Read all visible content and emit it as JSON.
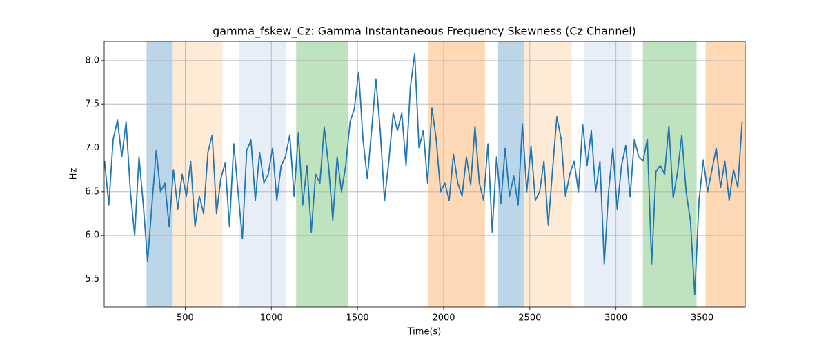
{
  "chart_data": {
    "type": "line",
    "title": "gamma_fskew_Cz: Gamma Instantaneous Frequency Skewness (Cz Channel)",
    "x_label": "Time(s)",
    "y_label": "Hz",
    "xlim": [
      30,
      3750
    ],
    "ylim": [
      5.18,
      8.22
    ],
    "xticks": [
      500,
      1000,
      1500,
      2000,
      2500,
      3000,
      3500
    ],
    "yticks": [
      5.5,
      {
        "value": 6,
        "label": "6.0"
      },
      6.5,
      {
        "value": 7,
        "label": "7.0"
      },
      7.5,
      {
        "value": 8,
        "label": "8.0"
      }
    ],
    "grid": true,
    "spans": [
      {
        "start": 276,
        "end": 428,
        "color": "#1f77b4"
      },
      {
        "start": 428,
        "end": 716,
        "color": "#ffbb78"
      },
      {
        "start": 812,
        "end": 1088,
        "color": "#aec7e8"
      },
      {
        "start": 1144,
        "end": 1444,
        "color": "#2ca02c"
      },
      {
        "start": 1908,
        "end": 2240,
        "color": "#ff7f0e"
      },
      {
        "start": 2316,
        "end": 2468,
        "color": "#1f77b4"
      },
      {
        "start": 2468,
        "end": 2744,
        "color": "#ffbb78"
      },
      {
        "start": 2816,
        "end": 3092,
        "color": "#aec7e8"
      },
      {
        "start": 3156,
        "end": 3468,
        "color": "#2ca02c"
      },
      {
        "start": 3520,
        "end": 3748,
        "color": "#ff7f0e"
      }
    ],
    "color": "#1f77b4",
    "x": [
      32,
      57,
      82,
      107,
      132,
      157,
      182,
      207,
      232,
      257,
      282,
      307,
      332,
      357,
      382,
      407,
      432,
      457,
      482,
      507,
      532,
      557,
      582,
      607,
      632,
      657,
      682,
      707,
      732,
      757,
      782,
      807,
      832,
      857,
      882,
      907,
      932,
      957,
      982,
      1007,
      1032,
      1057,
      1082,
      1107,
      1132,
      1157,
      1182,
      1207,
      1232,
      1257,
      1282,
      1307,
      1332,
      1357,
      1382,
      1407,
      1432,
      1457,
      1482,
      1507,
      1532,
      1557,
      1582,
      1607,
      1632,
      1657,
      1682,
      1707,
      1732,
      1757,
      1782,
      1807,
      1832,
      1857,
      1882,
      1907,
      1932,
      1957,
      1982,
      2007,
      2032,
      2057,
      2082,
      2107,
      2132,
      2157,
      2182,
      2207,
      2232,
      2257,
      2282,
      2307,
      2332,
      2357,
      2382,
      2407,
      2432,
      2457,
      2482,
      2507,
      2532,
      2557,
      2582,
      2607,
      2632,
      2657,
      2682,
      2707,
      2732,
      2757,
      2782,
      2807,
      2832,
      2857,
      2882,
      2907,
      2932,
      2957,
      2982,
      3007,
      3032,
      3057,
      3082,
      3107,
      3132,
      3157,
      3182,
      3207,
      3232,
      3257,
      3282,
      3307,
      3332,
      3357,
      3382,
      3407,
      3432,
      3457,
      3482,
      3507,
      3532,
      3557,
      3582,
      3607,
      3632,
      3657,
      3682,
      3707,
      3732
    ],
    "values": [
      6.85,
      6.35,
      7.1,
      7.32,
      6.9,
      7.3,
      6.5,
      6.0,
      6.9,
      6.35,
      5.7,
      6.35,
      6.97,
      6.5,
      6.6,
      6.1,
      6.75,
      6.3,
      6.7,
      6.45,
      6.85,
      6.1,
      6.45,
      6.25,
      6.95,
      7.15,
      6.25,
      6.65,
      6.83,
      6.1,
      7.05,
      6.5,
      5.96,
      6.97,
      7.09,
      6.4,
      6.95,
      6.6,
      6.7,
      7.0,
      6.4,
      6.8,
      6.9,
      7.15,
      6.45,
      7.17,
      6.35,
      6.8,
      6.04,
      6.7,
      6.6,
      7.24,
      6.8,
      6.17,
      6.9,
      6.5,
      6.8,
      7.3,
      7.45,
      7.87,
      7.1,
      6.65,
      7.2,
      7.79,
      7.2,
      6.4,
      6.85,
      7.4,
      7.2,
      7.4,
      6.8,
      7.7,
      8.08,
      7.0,
      7.2,
      6.6,
      7.46,
      7.1,
      6.5,
      6.6,
      6.4,
      6.93,
      6.6,
      6.45,
      6.9,
      6.58,
      7.25,
      6.6,
      6.4,
      7.05,
      6.04,
      6.9,
      6.37,
      7.0,
      6.45,
      6.68,
      6.35,
      7.28,
      6.5,
      7.02,
      6.4,
      6.5,
      6.85,
      6.12,
      6.75,
      7.36,
      7.1,
      6.45,
      6.7,
      6.85,
      6.5,
      7.27,
      6.8,
      7.2,
      6.5,
      6.85,
      5.67,
      6.5,
      7.0,
      6.3,
      6.8,
      7.03,
      6.44,
      7.1,
      6.9,
      6.85,
      7.1,
      5.67,
      6.73,
      6.8,
      6.7,
      7.25,
      6.43,
      6.72,
      7.15,
      6.5,
      6.17,
      5.32,
      6.4,
      6.86,
      6.5,
      6.75,
      7.0,
      6.55,
      6.85,
      6.4,
      6.75,
      6.55,
      7.3
    ]
  }
}
